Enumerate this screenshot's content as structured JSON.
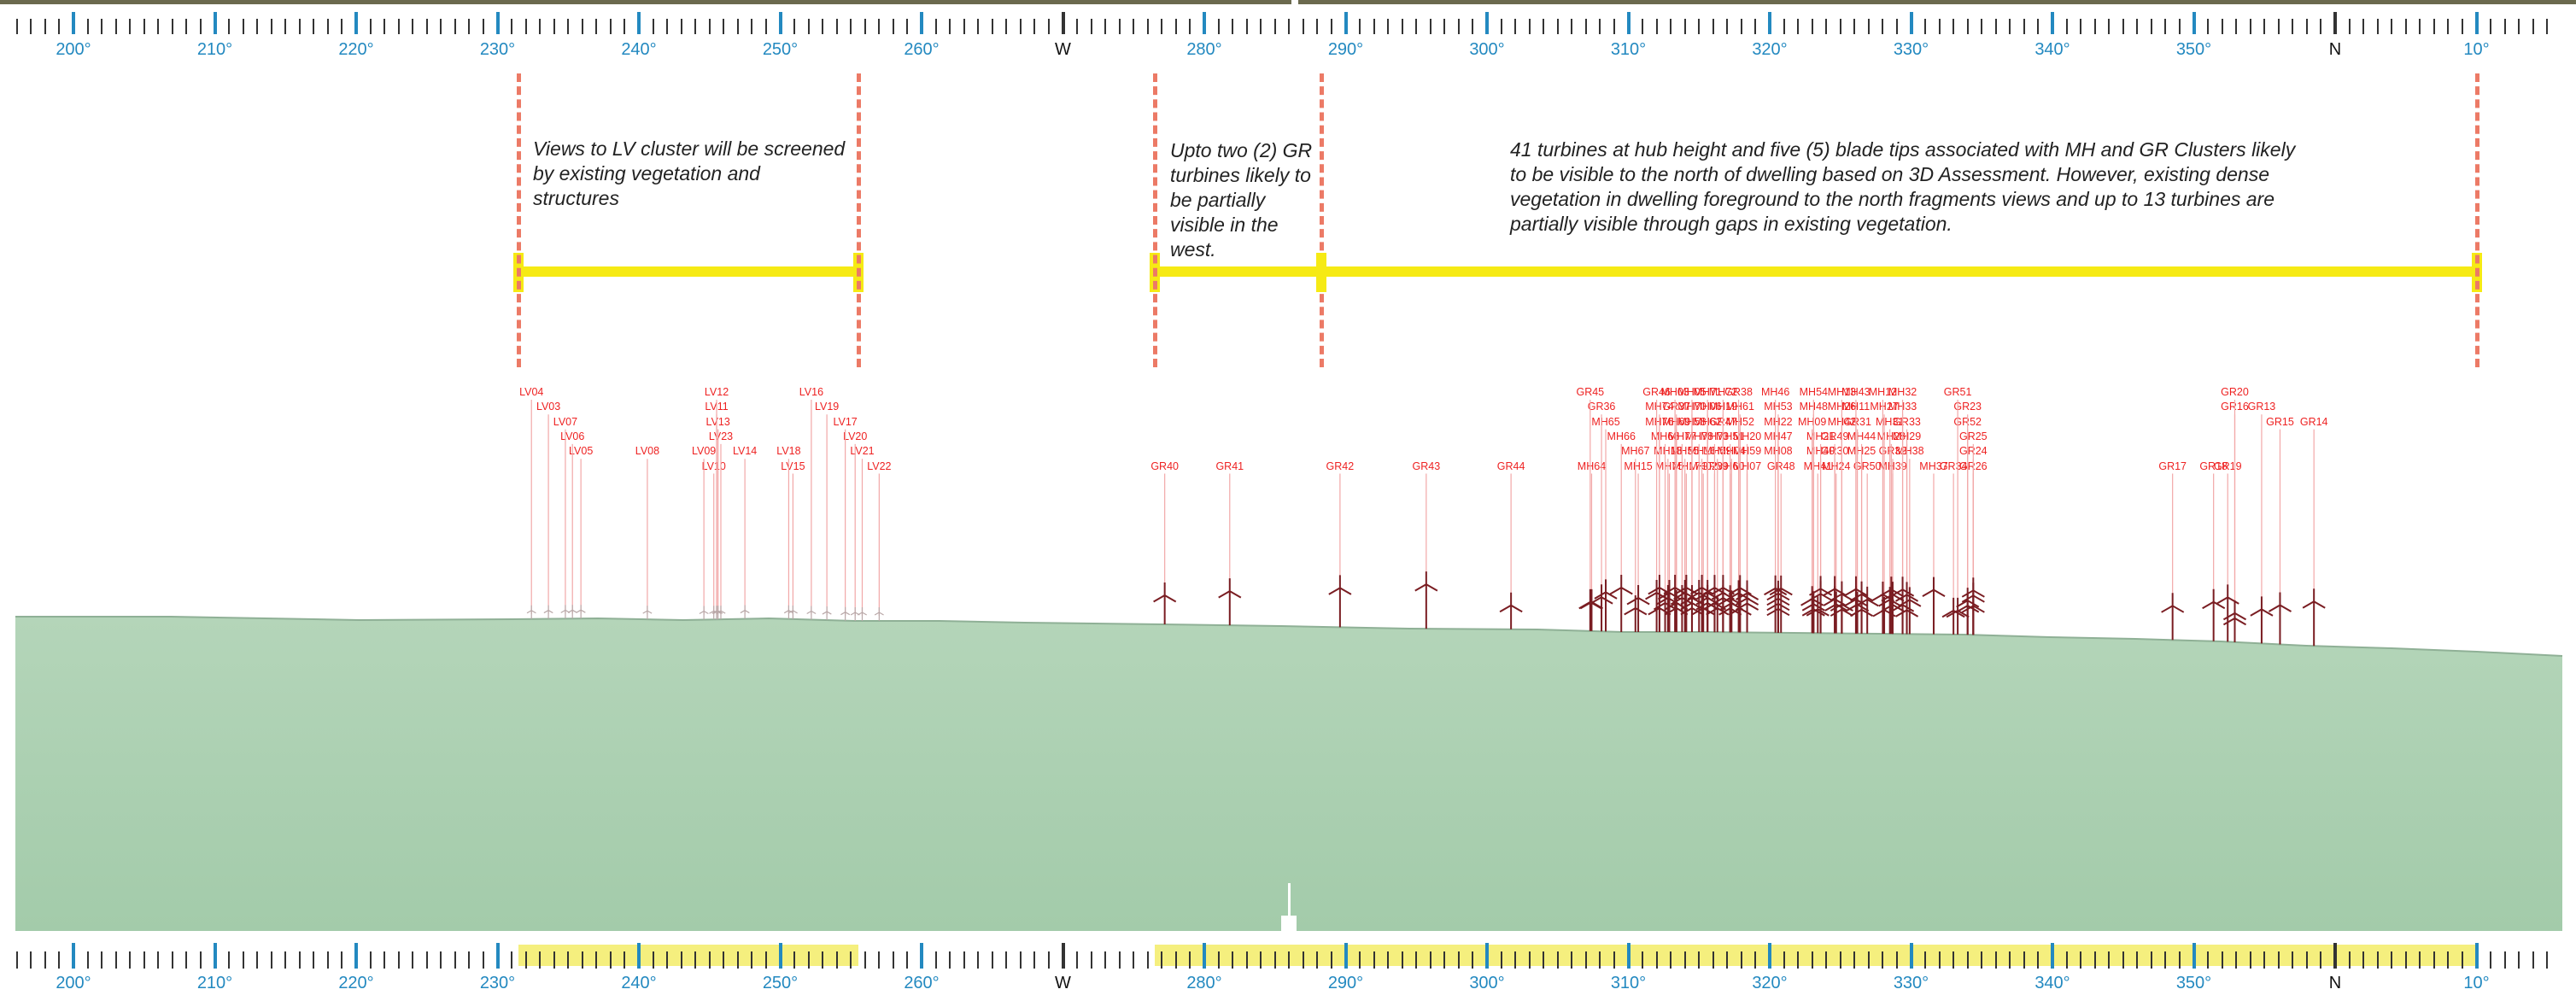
{
  "compass": {
    "start_deg": 195,
    "end_deg": 375,
    "major_labels": [
      {
        "deg": 200,
        "text": "200°",
        "color": "#2389c0"
      },
      {
        "deg": 210,
        "text": "210°",
        "color": "#2389c0"
      },
      {
        "deg": 220,
        "text": "220°",
        "color": "#2389c0"
      },
      {
        "deg": 230,
        "text": "230°",
        "color": "#2389c0"
      },
      {
        "deg": 240,
        "text": "240°",
        "color": "#2389c0"
      },
      {
        "deg": 250,
        "text": "250°",
        "color": "#2389c0"
      },
      {
        "deg": 260,
        "text": "260°",
        "color": "#2389c0"
      },
      {
        "deg": 270,
        "text": "W",
        "color": "#111111"
      },
      {
        "deg": 280,
        "text": "280°",
        "color": "#2389c0"
      },
      {
        "deg": 290,
        "text": "290°",
        "color": "#2389c0"
      },
      {
        "deg": 300,
        "text": "300°",
        "color": "#2389c0"
      },
      {
        "deg": 310,
        "text": "310°",
        "color": "#2389c0"
      },
      {
        "deg": 320,
        "text": "320°",
        "color": "#2389c0"
      },
      {
        "deg": 330,
        "text": "330°",
        "color": "#2389c0"
      },
      {
        "deg": 340,
        "text": "340°",
        "color": "#2389c0"
      },
      {
        "deg": 350,
        "text": "350°",
        "color": "#2389c0"
      },
      {
        "deg": 360,
        "text": "N",
        "color": "#111111"
      },
      {
        "deg": 370,
        "text": "10°",
        "color": "#2389c0"
      }
    ]
  },
  "visibility_ranges": [
    {
      "from_deg": 231.5,
      "to_deg": 255.5
    },
    {
      "from_deg": 276.5,
      "to_deg": 288.3
    },
    {
      "from_deg": 288.3,
      "to_deg": 370
    }
  ],
  "notes": [
    {
      "text": "Views to LV cluster will be screened by existing vegetation and structures"
    },
    {
      "text": "Upto two (2) GR turbines likely to be partially visible in the west."
    },
    {
      "text": "41 turbines at hub height and five (5) blade tips associated with MH and GR Clusters likely to be visible to the north of dwelling based on 3D Assessment. However, existing dense vegetation in dwelling foreground to the north fragments views and up to 13 turbines are partially visible through gaps in existing vegetation."
    }
  ],
  "turbines": [
    {
      "label": "LV04",
      "row": 0,
      "deg": 232.4,
      "vis": false
    },
    {
      "label": "LV03",
      "row": 1,
      "deg": 233.6,
      "vis": false
    },
    {
      "label": "LV07",
      "row": 2,
      "deg": 234.8,
      "vis": false
    },
    {
      "label": "LV06",
      "row": 3,
      "deg": 235.3,
      "vis": false
    },
    {
      "label": "LV05",
      "row": 4,
      "deg": 235.9,
      "vis": false
    },
    {
      "label": "LV08",
      "row": 4,
      "deg": 240.6,
      "vis": false
    },
    {
      "label": "LV12",
      "row": 0,
      "deg": 245.5,
      "vis": false
    },
    {
      "label": "LV11",
      "row": 1,
      "deg": 245.5,
      "vis": false
    },
    {
      "label": "LV13",
      "row": 2,
      "deg": 245.6,
      "vis": false
    },
    {
      "label": "LV23",
      "row": 3,
      "deg": 245.8,
      "vis": false
    },
    {
      "label": "LV09",
      "row": 4,
      "deg": 244.6,
      "vis": false
    },
    {
      "label": "LV10",
      "row": 5,
      "deg": 245.3,
      "vis": false
    },
    {
      "label": "LV14",
      "row": 4,
      "deg": 247.5,
      "vis": false
    },
    {
      "label": "LV16",
      "row": 0,
      "deg": 252.2,
      "vis": false
    },
    {
      "label": "LV19",
      "row": 1,
      "deg": 253.3,
      "vis": false
    },
    {
      "label": "LV17",
      "row": 2,
      "deg": 254.6,
      "vis": false
    },
    {
      "label": "LV20",
      "row": 3,
      "deg": 255.3,
      "vis": false
    },
    {
      "label": "LV21",
      "row": 4,
      "deg": 255.8,
      "vis": false
    },
    {
      "label": "LV22",
      "row": 5,
      "deg": 257.0,
      "vis": false
    },
    {
      "label": "LV18",
      "row": 4,
      "deg": 250.6,
      "vis": false
    },
    {
      "label": "LV15",
      "row": 5,
      "deg": 250.9,
      "vis": false
    },
    {
      "label": "GR40",
      "row": 5,
      "deg": 277.2,
      "vis": true
    },
    {
      "label": "GR41",
      "row": 5,
      "deg": 281.8,
      "vis": true
    },
    {
      "label": "GR42",
      "row": 5,
      "deg": 289.6,
      "vis": true
    },
    {
      "label": "GR43",
      "row": 5,
      "deg": 295.7,
      "vis": true
    },
    {
      "label": "GR44",
      "row": 5,
      "deg": 301.7,
      "vis": true
    },
    {
      "label": "GR45",
      "row": 0,
      "deg": 307.3,
      "vis": true
    },
    {
      "label": "GR36",
      "row": 1,
      "deg": 308.1,
      "vis": true
    },
    {
      "label": "MH65",
      "row": 2,
      "deg": 308.4,
      "vis": true
    },
    {
      "label": "MH66",
      "row": 3,
      "deg": 309.5,
      "vis": true
    },
    {
      "label": "MH67",
      "row": 4,
      "deg": 310.5,
      "vis": true
    },
    {
      "label": "MH64",
      "row": 5,
      "deg": 307.4,
      "vis": true
    },
    {
      "label": "MH15",
      "row": 5,
      "deg": 310.7,
      "vis": true
    },
    {
      "label": "GR46",
      "row": 0,
      "deg": 312.0,
      "vis": true
    },
    {
      "label": "MH03",
      "row": 0,
      "deg": 313.3,
      "vis": true
    },
    {
      "label": "MH05",
      "row": 0,
      "deg": 314.5,
      "vis": true
    },
    {
      "label": "MH71",
      "row": 0,
      "deg": 315.6,
      "vis": true
    },
    {
      "label": "MH72",
      "row": 0,
      "deg": 316.7,
      "vis": true
    },
    {
      "label": "GR38",
      "row": 0,
      "deg": 317.8,
      "vis": true
    },
    {
      "label": "MH74",
      "row": 1,
      "deg": 312.2,
      "vis": true
    },
    {
      "label": "GR37",
      "row": 1,
      "deg": 313.4,
      "vis": true
    },
    {
      "label": "MH70",
      "row": 1,
      "deg": 314.5,
      "vis": true
    },
    {
      "label": "MH06",
      "row": 1,
      "deg": 315.6,
      "vis": true
    },
    {
      "label": "MH19",
      "row": 1,
      "deg": 316.7,
      "vis": true
    },
    {
      "label": "MH61",
      "row": 1,
      "deg": 317.9,
      "vis": true
    },
    {
      "label": "MH76",
      "row": 2,
      "deg": 312.2,
      "vis": true
    },
    {
      "label": "MH69",
      "row": 2,
      "deg": 313.4,
      "vis": true
    },
    {
      "label": "MH58",
      "row": 2,
      "deg": 314.5,
      "vis": true
    },
    {
      "label": "MH62",
      "row": 2,
      "deg": 315.6,
      "vis": true
    },
    {
      "label": "GR47",
      "row": 2,
      "deg": 316.7,
      "vis": true
    },
    {
      "label": "MH52",
      "row": 2,
      "deg": 317.9,
      "vis": true
    },
    {
      "label": "MH68",
      "row": 3,
      "deg": 312.6,
      "vis": true
    },
    {
      "label": "MH77",
      "row": 3,
      "deg": 313.8,
      "vis": true
    },
    {
      "label": "MH78",
      "row": 3,
      "deg": 315.0,
      "vis": true
    },
    {
      "label": "MH73",
      "row": 3,
      "deg": 316.1,
      "vis": true
    },
    {
      "label": "MH51",
      "row": 3,
      "deg": 317.2,
      "vis": true
    },
    {
      "label": "MH20",
      "row": 3,
      "deg": 318.4,
      "vis": true
    },
    {
      "label": "MH18",
      "row": 4,
      "deg": 312.8,
      "vis": true
    },
    {
      "label": "MH55",
      "row": 4,
      "deg": 314.0,
      "vis": true
    },
    {
      "label": "MH16",
      "row": 4,
      "deg": 315.2,
      "vis": true
    },
    {
      "label": "MH59",
      "row": 4,
      "deg": 316.3,
      "vis": true
    },
    {
      "label": "MH04",
      "row": 4,
      "deg": 317.3,
      "vis": true
    },
    {
      "label": "MH59",
      "row": 4,
      "deg": 318.4,
      "vis": true
    },
    {
      "label": "MH75",
      "row": 5,
      "deg": 312.9,
      "vis": true
    },
    {
      "label": "MH17",
      "row": 5,
      "deg": 314.1,
      "vis": true
    },
    {
      "label": "MH02",
      "row": 5,
      "deg": 315.3,
      "vis": true
    },
    {
      "label": "GR39",
      "row": 5,
      "deg": 316.1,
      "vis": true
    },
    {
      "label": "MH60",
      "row": 5,
      "deg": 317.2,
      "vis": true
    },
    {
      "label": "MH07",
      "row": 5,
      "deg": 318.4,
      "vis": true
    },
    {
      "label": "MH46",
      "row": 0,
      "deg": 320.4,
      "vis": true
    },
    {
      "label": "MH53",
      "row": 1,
      "deg": 320.6,
      "vis": true
    },
    {
      "label": "MH22",
      "row": 2,
      "deg": 320.6,
      "vis": true
    },
    {
      "label": "MH47",
      "row": 3,
      "deg": 320.6,
      "vis": true
    },
    {
      "label": "MH08",
      "row": 4,
      "deg": 320.6,
      "vis": true
    },
    {
      "label": "GR48",
      "row": 5,
      "deg": 320.8,
      "vis": true
    },
    {
      "label": "MH54",
      "row": 0,
      "deg": 323.1,
      "vis": true
    },
    {
      "label": "MH48",
      "row": 1,
      "deg": 323.1,
      "vis": true
    },
    {
      "label": "MH09",
      "row": 2,
      "deg": 323.0,
      "vis": true
    },
    {
      "label": "MH21",
      "row": 3,
      "deg": 323.6,
      "vis": true
    },
    {
      "label": "MH40",
      "row": 4,
      "deg": 323.6,
      "vis": true
    },
    {
      "label": "MH41",
      "row": 5,
      "deg": 323.4,
      "vis": true
    },
    {
      "label": "MH13",
      "row": 0,
      "deg": 325.1,
      "vis": true
    },
    {
      "label": "MH43",
      "row": 0,
      "deg": 326.1,
      "vis": true
    },
    {
      "label": "MH26",
      "row": 1,
      "deg": 325.1,
      "vis": true
    },
    {
      "label": "MH11",
      "row": 1,
      "deg": 326.1,
      "vis": true
    },
    {
      "label": "MH42",
      "row": 2,
      "deg": 325.1,
      "vis": true
    },
    {
      "label": "GR31",
      "row": 2,
      "deg": 326.2,
      "vis": true
    },
    {
      "label": "GR49",
      "row": 3,
      "deg": 324.6,
      "vis": true
    },
    {
      "label": "MH44",
      "row": 3,
      "deg": 326.5,
      "vis": true
    },
    {
      "label": "GR30",
      "row": 4,
      "deg": 324.6,
      "vis": true
    },
    {
      "label": "MH25",
      "row": 4,
      "deg": 326.5,
      "vis": true
    },
    {
      "label": "MH24",
      "row": 5,
      "deg": 324.7,
      "vis": true
    },
    {
      "label": "GR50",
      "row": 5,
      "deg": 326.9,
      "vis": true
    },
    {
      "label": "MH12",
      "row": 0,
      "deg": 328.0,
      "vis": true
    },
    {
      "label": "MH32",
      "row": 0,
      "deg": 329.4,
      "vis": true
    },
    {
      "label": "MH27",
      "row": 1,
      "deg": 328.1,
      "vis": true
    },
    {
      "label": "MH33",
      "row": 1,
      "deg": 329.4,
      "vis": true
    },
    {
      "label": "MH31",
      "row": 2,
      "deg": 328.5,
      "vis": true
    },
    {
      "label": "GR33",
      "row": 2,
      "deg": 329.7,
      "vis": true
    },
    {
      "label": "MH28",
      "row": 3,
      "deg": 328.6,
      "vis": true
    },
    {
      "label": "MH29",
      "row": 3,
      "deg": 329.7,
      "vis": true
    },
    {
      "label": "GR32",
      "row": 4,
      "deg": 328.7,
      "vis": true
    },
    {
      "label": "MH38",
      "row": 4,
      "deg": 329.9,
      "vis": true
    },
    {
      "label": "MH39",
      "row": 5,
      "deg": 328.7,
      "vis": true
    },
    {
      "label": "MH37",
      "row": 5,
      "deg": 331.6,
      "vis": true
    },
    {
      "label": "GR51",
      "row": 0,
      "deg": 333.3,
      "vis": true
    },
    {
      "label": "GR23",
      "row": 1,
      "deg": 334.0,
      "vis": true
    },
    {
      "label": "GR52",
      "row": 2,
      "deg": 334.0,
      "vis": true
    },
    {
      "label": "GR25",
      "row": 3,
      "deg": 334.4,
      "vis": true
    },
    {
      "label": "GR24",
      "row": 4,
      "deg": 334.4,
      "vis": true
    },
    {
      "label": "GR34",
      "row": 5,
      "deg": 333.0,
      "vis": true
    },
    {
      "label": "GR26",
      "row": 5,
      "deg": 334.4,
      "vis": true
    },
    {
      "label": "GR17",
      "row": 5,
      "deg": 348.5,
      "vis": true
    },
    {
      "label": "GR18",
      "row": 5,
      "deg": 351.4,
      "vis": true
    },
    {
      "label": "GR19",
      "row": 5,
      "deg": 352.4,
      "vis": true
    },
    {
      "label": "GR20",
      "row": 0,
      "deg": 352.9,
      "vis": true
    },
    {
      "label": "GR16",
      "row": 1,
      "deg": 352.9,
      "vis": true
    },
    {
      "label": "GR13",
      "row": 1,
      "deg": 354.8,
      "vis": true
    },
    {
      "label": "GR15",
      "row": 2,
      "deg": 356.1,
      "vis": true
    },
    {
      "label": "GR14",
      "row": 2,
      "deg": 358.5,
      "vis": true
    }
  ]
}
